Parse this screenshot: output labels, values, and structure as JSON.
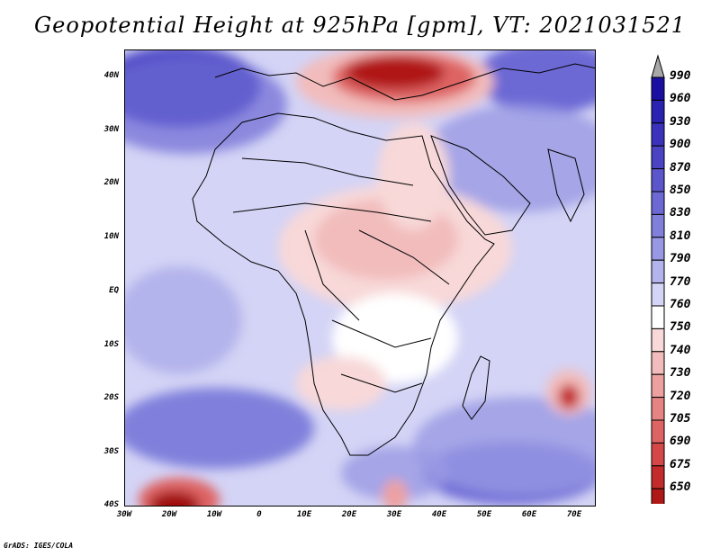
{
  "title": "Geopotential Height at 925hPa [gpm], VT: 2021031521",
  "footer": "GrADS: IGES/COLA",
  "lat_labels": [
    "40N",
    "30N",
    "20N",
    "10N",
    "EQ",
    "10S",
    "20S",
    "30S",
    "40S"
  ],
  "lon_labels": [
    "30W",
    "20W",
    "10W",
    "0",
    "10E",
    "20E",
    "30E",
    "40E",
    "50E",
    "60E",
    "70E"
  ],
  "colorbar": {
    "levels": [
      "990",
      "960",
      "930",
      "900",
      "870",
      "850",
      "830",
      "810",
      "790",
      "770",
      "760",
      "750",
      "740",
      "730",
      "720",
      "705",
      "690",
      "675",
      "650"
    ],
    "colors": [
      "#1a0fa0",
      "#2a22b0",
      "#3a32bc",
      "#4a44c4",
      "#5b56cc",
      "#6c69d4",
      "#8080dc",
      "#9898e4",
      "#b4b4ec",
      "#d4d4f6",
      "#ffffff",
      "#f8d8d8",
      "#f2bcbc",
      "#eca0a0",
      "#e68484",
      "#de6464",
      "#d44848",
      "#c42c2c",
      "#b01818",
      "#a00e0e"
    ],
    "over_color": "#a8a8a8",
    "under_color": "#a00e0e"
  }
}
